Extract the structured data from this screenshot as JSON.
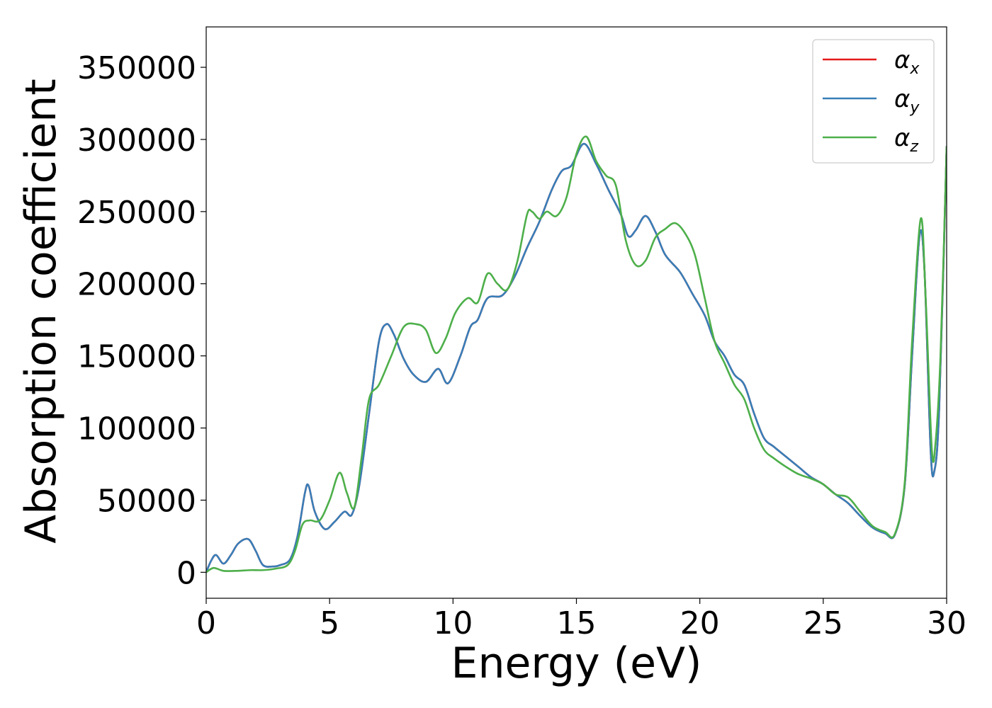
{
  "chart_data": {
    "type": "line",
    "title": "",
    "xlabel": "Energy (eV)",
    "ylabel": "Absorption coefficient",
    "xlim": [
      0,
      30
    ],
    "ylim": [
      -18000,
      378000
    ],
    "xticks": [
      0,
      5,
      10,
      15,
      20,
      25,
      30
    ],
    "yticks": [
      0,
      50000,
      100000,
      150000,
      200000,
      250000,
      300000,
      350000
    ],
    "grid": false,
    "legend_position": "top-right",
    "series": [
      {
        "name": "αx",
        "symbol": "α",
        "subscript": "x",
        "color": "#e41a1c",
        "x": [
          0,
          0.2,
          0.4,
          0.7,
          1.0,
          1.3,
          1.7,
          2.0,
          2.3,
          2.7,
          3.0,
          3.4,
          3.7,
          4.0,
          4.15,
          4.4,
          4.8,
          5.2,
          5.6,
          5.9,
          6.2,
          6.6,
          7.0,
          7.3,
          7.6,
          8.0,
          8.4,
          8.9,
          9.4,
          9.8,
          10.3,
          10.7,
          11.0,
          11.4,
          12.0,
          12.5,
          13.0,
          13.5,
          14.0,
          14.4,
          14.8,
          15.3,
          15.8,
          16.3,
          16.8,
          17.1,
          17.4,
          17.8,
          18.2,
          18.6,
          19.2,
          19.7,
          20.2,
          20.6,
          21.0,
          21.4,
          21.8,
          22.2,
          22.6,
          23.0,
          23.5,
          24.0,
          24.5,
          25.0,
          25.5,
          26.0,
          26.5,
          27.0,
          27.5,
          27.9,
          28.3,
          28.6,
          28.9,
          29.1,
          29.35,
          29.5,
          29.7,
          30.0
        ],
        "y": [
          0,
          8000,
          12000,
          6000,
          12000,
          20000,
          23000,
          15000,
          5000,
          4000,
          5000,
          9000,
          25000,
          55000,
          60000,
          42000,
          30000,
          35000,
          42000,
          40000,
          60000,
          110000,
          160000,
          172000,
          165000,
          148000,
          137000,
          132000,
          141000,
          131000,
          150000,
          170000,
          175000,
          190000,
          192000,
          205000,
          225000,
          243000,
          265000,
          278000,
          282000,
          297000,
          283000,
          265000,
          248000,
          233000,
          237000,
          247000,
          236000,
          220000,
          208000,
          193000,
          178000,
          160000,
          150000,
          137000,
          130000,
          110000,
          93000,
          87000,
          80000,
          73000,
          66000,
          61000,
          54000,
          48000,
          39000,
          31000,
          27000,
          26000,
          60000,
          150000,
          233000,
          210000,
          85000,
          70000,
          115000,
          295000
        ]
      },
      {
        "name": "αy",
        "symbol": "α",
        "subscript": "y",
        "color": "#377eb8",
        "x": [
          0,
          0.2,
          0.4,
          0.7,
          1.0,
          1.3,
          1.7,
          2.0,
          2.3,
          2.7,
          3.0,
          3.4,
          3.7,
          4.0,
          4.15,
          4.4,
          4.8,
          5.2,
          5.6,
          5.9,
          6.2,
          6.6,
          7.0,
          7.3,
          7.6,
          8.0,
          8.4,
          8.9,
          9.4,
          9.8,
          10.3,
          10.7,
          11.0,
          11.4,
          12.0,
          12.5,
          13.0,
          13.5,
          14.0,
          14.4,
          14.8,
          15.3,
          15.8,
          16.3,
          16.8,
          17.1,
          17.4,
          17.8,
          18.2,
          18.6,
          19.2,
          19.7,
          20.2,
          20.6,
          21.0,
          21.4,
          21.8,
          22.2,
          22.6,
          23.0,
          23.5,
          24.0,
          24.5,
          25.0,
          25.5,
          26.0,
          26.5,
          27.0,
          27.5,
          27.9,
          28.3,
          28.6,
          28.9,
          29.1,
          29.35,
          29.5,
          29.7,
          30.0
        ],
        "y": [
          0,
          8000,
          12000,
          6000,
          12000,
          20000,
          23000,
          15000,
          5000,
          4000,
          5000,
          9000,
          25000,
          55000,
          60000,
          42000,
          30000,
          35000,
          42000,
          40000,
          60000,
          110000,
          160000,
          172000,
          165000,
          148000,
          137000,
          132000,
          141000,
          131000,
          150000,
          170000,
          175000,
          190000,
          192000,
          205000,
          225000,
          243000,
          265000,
          278000,
          282000,
          297000,
          283000,
          265000,
          248000,
          233000,
          237000,
          247000,
          236000,
          220000,
          208000,
          193000,
          178000,
          160000,
          150000,
          137000,
          130000,
          110000,
          93000,
          87000,
          80000,
          73000,
          66000,
          61000,
          54000,
          48000,
          39000,
          31000,
          27000,
          26000,
          60000,
          150000,
          233000,
          210000,
          85000,
          70000,
          115000,
          295000
        ]
      },
      {
        "name": "αz",
        "symbol": "α",
        "subscript": "z",
        "color": "#4daf4a",
        "x": [
          0,
          0.3,
          0.7,
          1.2,
          1.8,
          2.3,
          2.8,
          3.3,
          3.6,
          3.9,
          4.2,
          4.6,
          5.0,
          5.4,
          5.7,
          6.0,
          6.3,
          6.6,
          7.0,
          7.5,
          8.0,
          8.5,
          8.9,
          9.3,
          9.7,
          10.1,
          10.6,
          11.0,
          11.4,
          11.8,
          12.2,
          12.6,
          13.0,
          13.2,
          13.5,
          13.8,
          14.2,
          14.6,
          15.0,
          15.4,
          15.8,
          16.2,
          16.6,
          17.0,
          17.4,
          17.8,
          18.2,
          18.6,
          19.0,
          19.4,
          19.8,
          20.2,
          20.6,
          21.0,
          21.4,
          21.8,
          22.2,
          22.6,
          23.0,
          23.5,
          24.0,
          24.5,
          25.0,
          25.5,
          26.0,
          26.5,
          27.0,
          27.5,
          27.9,
          28.3,
          28.6,
          28.95,
          29.15,
          29.4,
          29.55,
          29.75,
          30.0
        ],
        "y": [
          0,
          3000,
          1000,
          1000,
          1500,
          1500,
          2500,
          5000,
          15000,
          33000,
          36000,
          36000,
          50000,
          69000,
          55000,
          45000,
          80000,
          120000,
          130000,
          150000,
          170000,
          172000,
          168000,
          152000,
          162000,
          180000,
          190000,
          187000,
          207000,
          200000,
          196000,
          215000,
          248000,
          250000,
          245000,
          250000,
          247000,
          260000,
          290000,
          302000,
          285000,
          275000,
          268000,
          230000,
          213000,
          216000,
          232000,
          238000,
          242000,
          235000,
          220000,
          190000,
          160000,
          145000,
          130000,
          120000,
          100000,
          85000,
          79000,
          73000,
          68000,
          65000,
          61000,
          54000,
          52000,
          42000,
          32000,
          28000,
          26500,
          62000,
          160000,
          245000,
          190000,
          85000,
          90000,
          150000,
          295000
        ]
      }
    ]
  }
}
